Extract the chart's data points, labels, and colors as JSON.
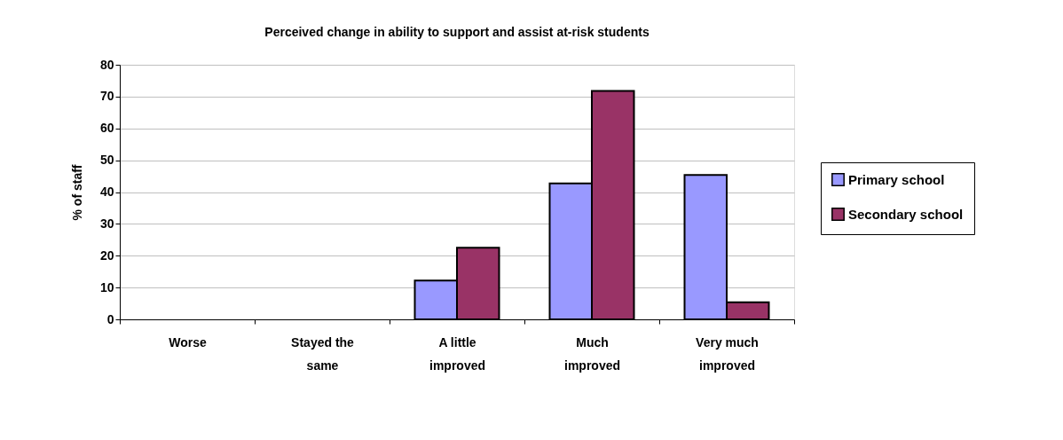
{
  "chart_data": {
    "type": "bar",
    "title": "Perceived change in ability to support and assist at-risk students",
    "ylabel": "% of staff",
    "categories": [
      "Worse",
      "Stayed the same",
      "A little improved",
      "Much improved",
      "Very much improved"
    ],
    "series": [
      {
        "name": "Primary school",
        "color": "#9999ff",
        "values": [
          0,
          0,
          12.2,
          42.7,
          45.4
        ]
      },
      {
        "name": "Secondary school",
        "color": "#993366",
        "values": [
          0,
          0,
          22.5,
          71.8,
          5.4
        ]
      }
    ],
    "ylim": [
      0,
      80
    ],
    "yticks": [
      0,
      10,
      20,
      30,
      40,
      50,
      60,
      70,
      80
    ],
    "grid": "y",
    "legend": "right"
  }
}
